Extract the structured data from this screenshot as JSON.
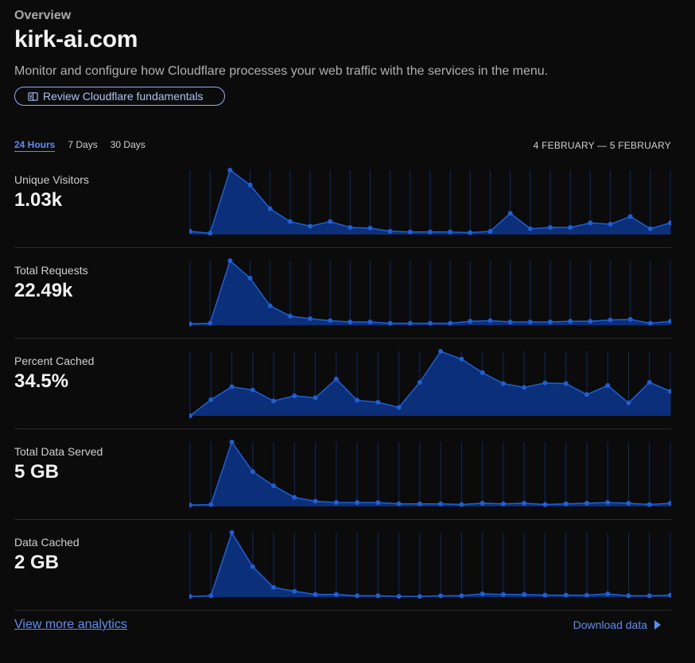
{
  "header": {
    "overview": "Overview",
    "domain": "kirk-ai.com",
    "description": "Monitor and configure how Cloudflare processes your web traffic with the services in the menu.",
    "fundamentals_button": "Review Cloudflare fundamentals",
    "fundamentals_icon": "book-open-icon"
  },
  "tabs": [
    {
      "label": "24 Hours",
      "active": true
    },
    {
      "label": "7 Days",
      "active": false
    },
    {
      "label": "30 Days",
      "active": false
    }
  ],
  "date_range": "4 FEBRUARY — 5 FEBRUARY",
  "colors": {
    "accent": "#5b8def",
    "line": "#1f5fd6",
    "fill": "#0b2f78",
    "grid": "#0d2a63"
  },
  "metrics": [
    {
      "name": "Unique Visitors",
      "value": "1.03k"
    },
    {
      "name": "Total Requests",
      "value": "22.49k"
    },
    {
      "name": "Percent Cached",
      "value": "34.5%"
    },
    {
      "name": "Total Data Served",
      "value": "5 GB"
    },
    {
      "name": "Data Cached",
      "value": "2 GB"
    }
  ],
  "chart_data": [
    {
      "type": "area",
      "values": [
        5,
        2,
        100,
        77,
        40,
        20,
        13,
        20,
        11,
        10,
        5,
        4,
        4,
        4,
        3,
        5,
        33,
        9,
        11,
        11,
        18,
        16,
        28,
        9,
        18
      ]
    },
    {
      "type": "area",
      "values": [
        2,
        3,
        100,
        73,
        30,
        14,
        10,
        7,
        5,
        5,
        3,
        3,
        3,
        3,
        6,
        7,
        5,
        5,
        5,
        6,
        6,
        8,
        9,
        3,
        6
      ]
    },
    {
      "type": "area",
      "values": [
        0,
        25,
        45,
        40,
        23,
        31,
        28,
        57,
        24,
        21,
        13,
        52,
        100,
        88,
        67,
        50,
        44,
        51,
        50,
        33,
        47,
        20,
        52,
        38
      ]
    },
    {
      "type": "area",
      "values": [
        2,
        3,
        100,
        54,
        32,
        14,
        8,
        6,
        6,
        6,
        4,
        4,
        4,
        3,
        5,
        4,
        5,
        3,
        4,
        5,
        6,
        5,
        3,
        5
      ]
    },
    {
      "type": "area",
      "values": [
        1,
        2,
        100,
        47,
        15,
        9,
        4,
        4,
        2,
        2,
        1,
        1,
        2,
        2,
        5,
        4,
        4,
        3,
        3,
        3,
        5,
        2,
        2,
        3
      ]
    }
  ],
  "footer": {
    "more_analytics": "View more analytics",
    "download": "Download data",
    "download_icon": "triangle-right-icon"
  }
}
